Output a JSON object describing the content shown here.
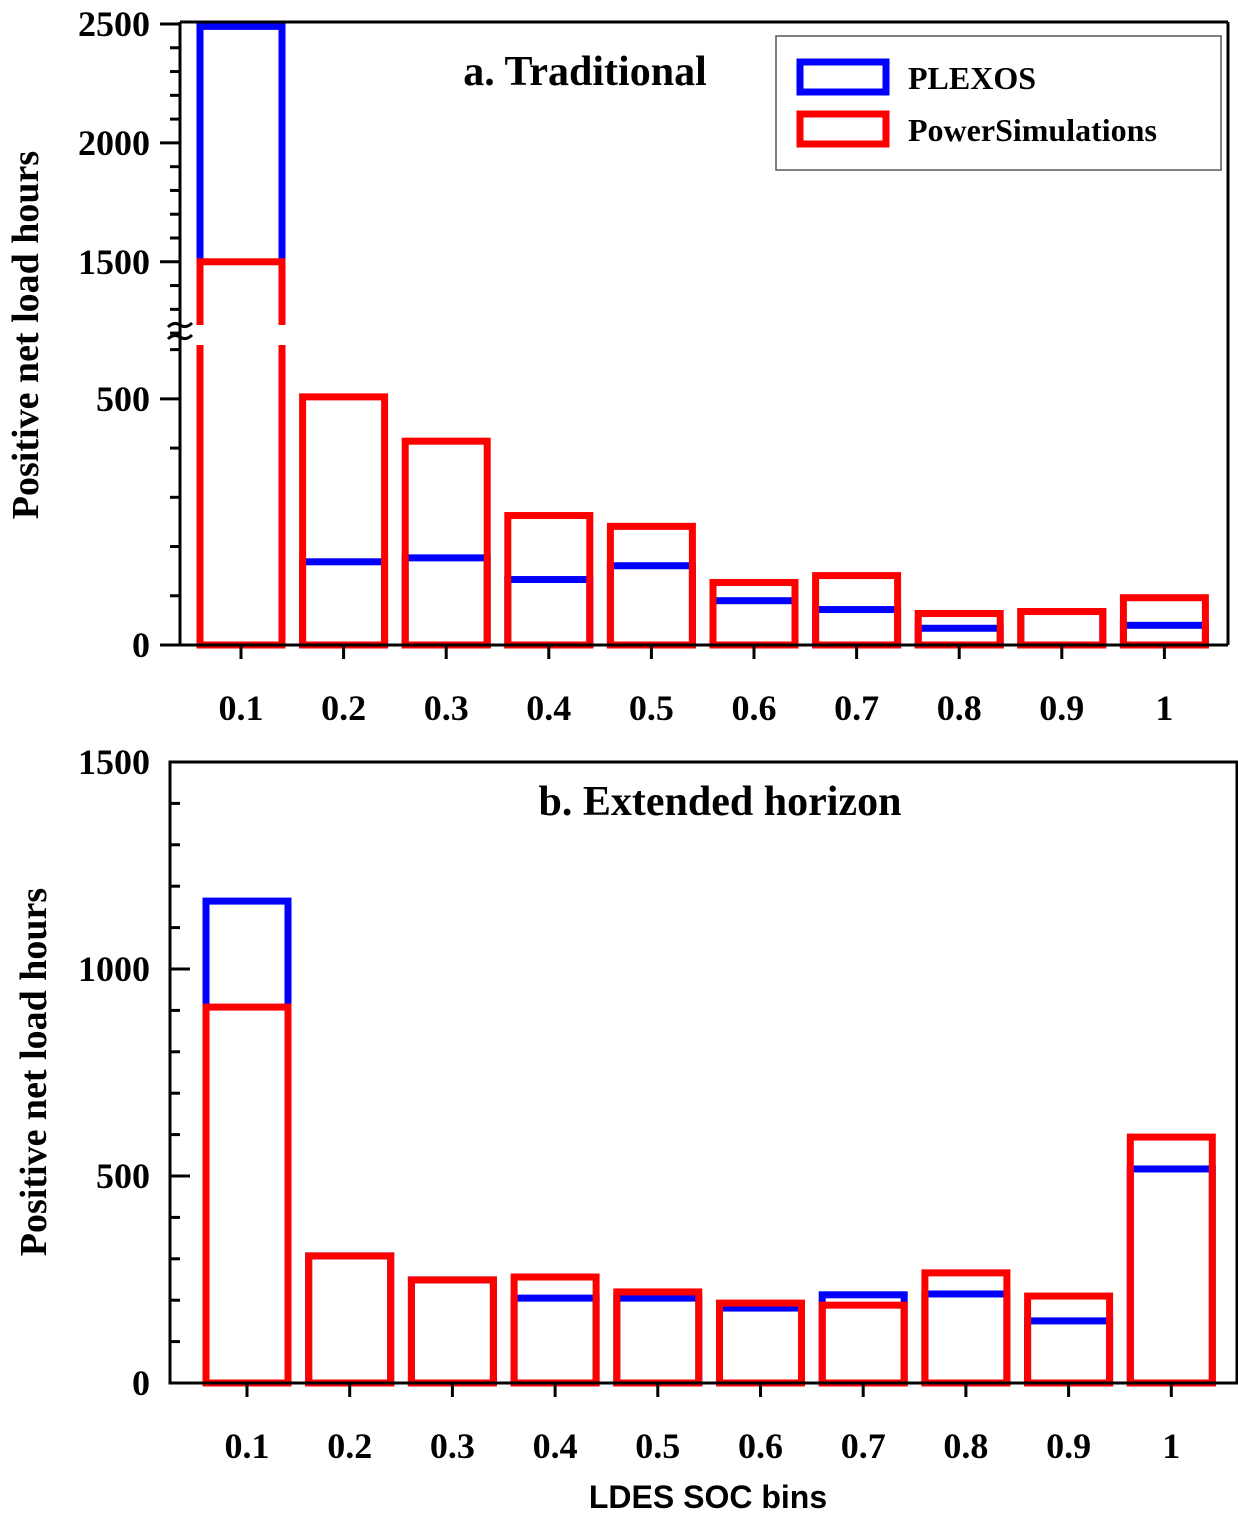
{
  "colors": {
    "PLEXOS": "#0000ff",
    "PowerSimulations": "#ff0000"
  },
  "chart_data": [
    {
      "type": "bar",
      "title": "a. Traditional",
      "ylabel": "Positive net load hours",
      "xlabel": "",
      "categories": [
        "0.1",
        "0.2",
        "0.3",
        "0.4",
        "0.5",
        "0.6",
        "0.7",
        "0.8",
        "0.9",
        "1"
      ],
      "y_axis_break": [
        650,
        1150
      ],
      "ylim": [
        0,
        2500
      ],
      "yticks": [
        "0",
        "500",
        "1500",
        "2000",
        "2500"
      ],
      "legend_position": "top-right",
      "series": [
        {
          "name": "PLEXOS",
          "values": [
            2490,
            169,
            177,
            133,
            161,
            90,
            72,
            34,
            68,
            40
          ]
        },
        {
          "name": "PowerSimulations",
          "values": [
            1500,
            504,
            414,
            263,
            241,
            127,
            141,
            64,
            68,
            96
          ]
        }
      ]
    },
    {
      "type": "bar",
      "title": "b. Extended horizon",
      "ylabel": "Positive net load hours",
      "xlabel": "LDES SOC bins",
      "categories": [
        "0.1",
        "0.2",
        "0.3",
        "0.4",
        "0.5",
        "0.6",
        "0.7",
        "0.8",
        "0.9",
        "1"
      ],
      "ylim": [
        0,
        1500
      ],
      "yticks": [
        "0",
        "500",
        "1000",
        "1500"
      ],
      "series": [
        {
          "name": "PLEXOS",
          "values": [
            1164,
            307,
            249,
            205,
            205,
            181,
            213,
            215,
            150,
            517
          ]
        },
        {
          "name": "PowerSimulations",
          "values": [
            908,
            307,
            249,
            256,
            220,
            193,
            188,
            266,
            210,
            594
          ]
        }
      ]
    }
  ]
}
